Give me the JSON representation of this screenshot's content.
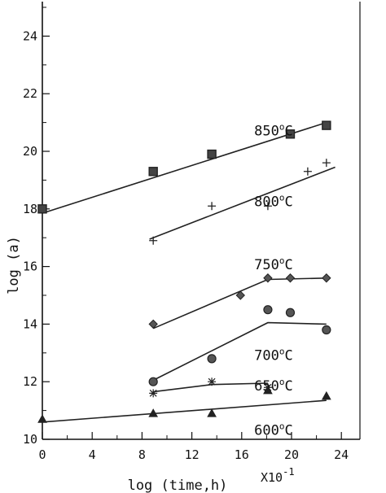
{
  "chart_data": {
    "type": "scatter",
    "xlabel": "log (time,h)",
    "ylabel": "log (a)",
    "x_multiplier_label": "X10",
    "x_multiplier_exponent": "-1",
    "xlim": [
      0,
      26
    ],
    "ylim": [
      10,
      25
    ],
    "x_ticks": [
      0,
      4,
      8,
      12,
      16,
      20,
      24
    ],
    "x_tick_labels": [
      "0",
      "4",
      "8",
      "12",
      "16",
      "20",
      "24"
    ],
    "y_ticks": [
      10,
      12,
      14,
      16,
      18,
      20,
      22,
      24
    ],
    "y_tick_labels": [
      "10",
      "12",
      "14",
      "16",
      "18",
      "20",
      "22",
      "24"
    ],
    "grid": false,
    "series": [
      {
        "name": "850°C",
        "label_main": "850",
        "label_unit": "C",
        "marker": "square",
        "color": "#222222",
        "points": [
          [
            0,
            18.0
          ],
          [
            8.9,
            19.3
          ],
          [
            13.6,
            19.9
          ],
          [
            19.9,
            20.6
          ],
          [
            22.8,
            20.9
          ]
        ],
        "fit": [
          [
            0,
            17.85
          ],
          [
            22.8,
            21.0
          ]
        ],
        "label_pos": [
          17.0,
          20.55
        ]
      },
      {
        "name": "800°C",
        "label_main": "800",
        "label_unit": "C",
        "marker": "plus",
        "color": "#222222",
        "points": [
          [
            8.9,
            16.9
          ],
          [
            13.6,
            18.1
          ],
          [
            18.1,
            18.1
          ],
          [
            21.3,
            19.3
          ],
          [
            22.8,
            19.6
          ]
        ],
        "fit": [
          [
            8.6,
            16.95
          ],
          [
            23.5,
            19.45
          ]
        ],
        "label_pos": [
          17.0,
          18.1
        ]
      },
      {
        "name": "750°C",
        "label_main": "750",
        "label_unit": "C",
        "marker": "diamond",
        "color": "#222222",
        "points": [
          [
            8.9,
            14.0
          ],
          [
            15.9,
            15.0
          ],
          [
            18.1,
            15.6
          ],
          [
            19.9,
            15.6
          ],
          [
            22.8,
            15.6
          ]
        ],
        "fit": [
          [
            8.9,
            13.85
          ],
          [
            18.1,
            15.55
          ],
          [
            22.8,
            15.6
          ]
        ],
        "label_pos": [
          17.0,
          15.9
        ]
      },
      {
        "name": "700°C",
        "label_main": "700",
        "label_unit": "C",
        "marker": "circle",
        "color": "#222222",
        "points": [
          [
            8.9,
            12.0
          ],
          [
            13.6,
            12.8
          ],
          [
            18.1,
            14.5
          ],
          [
            19.9,
            14.4
          ],
          [
            22.8,
            13.8
          ]
        ],
        "fit": [
          [
            8.9,
            12.05
          ],
          [
            18.1,
            14.05
          ],
          [
            22.8,
            14.0
          ]
        ],
        "label_pos": [
          17.0,
          12.75
        ]
      },
      {
        "name": "650°C",
        "label_main": "650",
        "label_unit": "C",
        "marker": "asterisk",
        "color": "#222222",
        "points": [
          [
            8.9,
            11.6
          ],
          [
            13.6,
            12.0
          ],
          [
            18.1,
            11.8
          ]
        ],
        "fit": [
          [
            8.9,
            11.65
          ],
          [
            13.6,
            11.9
          ],
          [
            18.1,
            11.95
          ]
        ],
        "label_pos": [
          17.0,
          11.7
        ]
      },
      {
        "name": "600°C",
        "label_main": "600",
        "label_unit": "C",
        "marker": "triangle",
        "color": "#222222",
        "points": [
          [
            0,
            10.7
          ],
          [
            8.9,
            10.9
          ],
          [
            13.6,
            10.9
          ],
          [
            18.1,
            11.7
          ],
          [
            22.8,
            11.5
          ]
        ],
        "fit": [
          [
            0,
            10.6
          ],
          [
            22.8,
            11.35
          ]
        ],
        "label_pos": [
          17.0,
          10.15
        ]
      }
    ]
  }
}
